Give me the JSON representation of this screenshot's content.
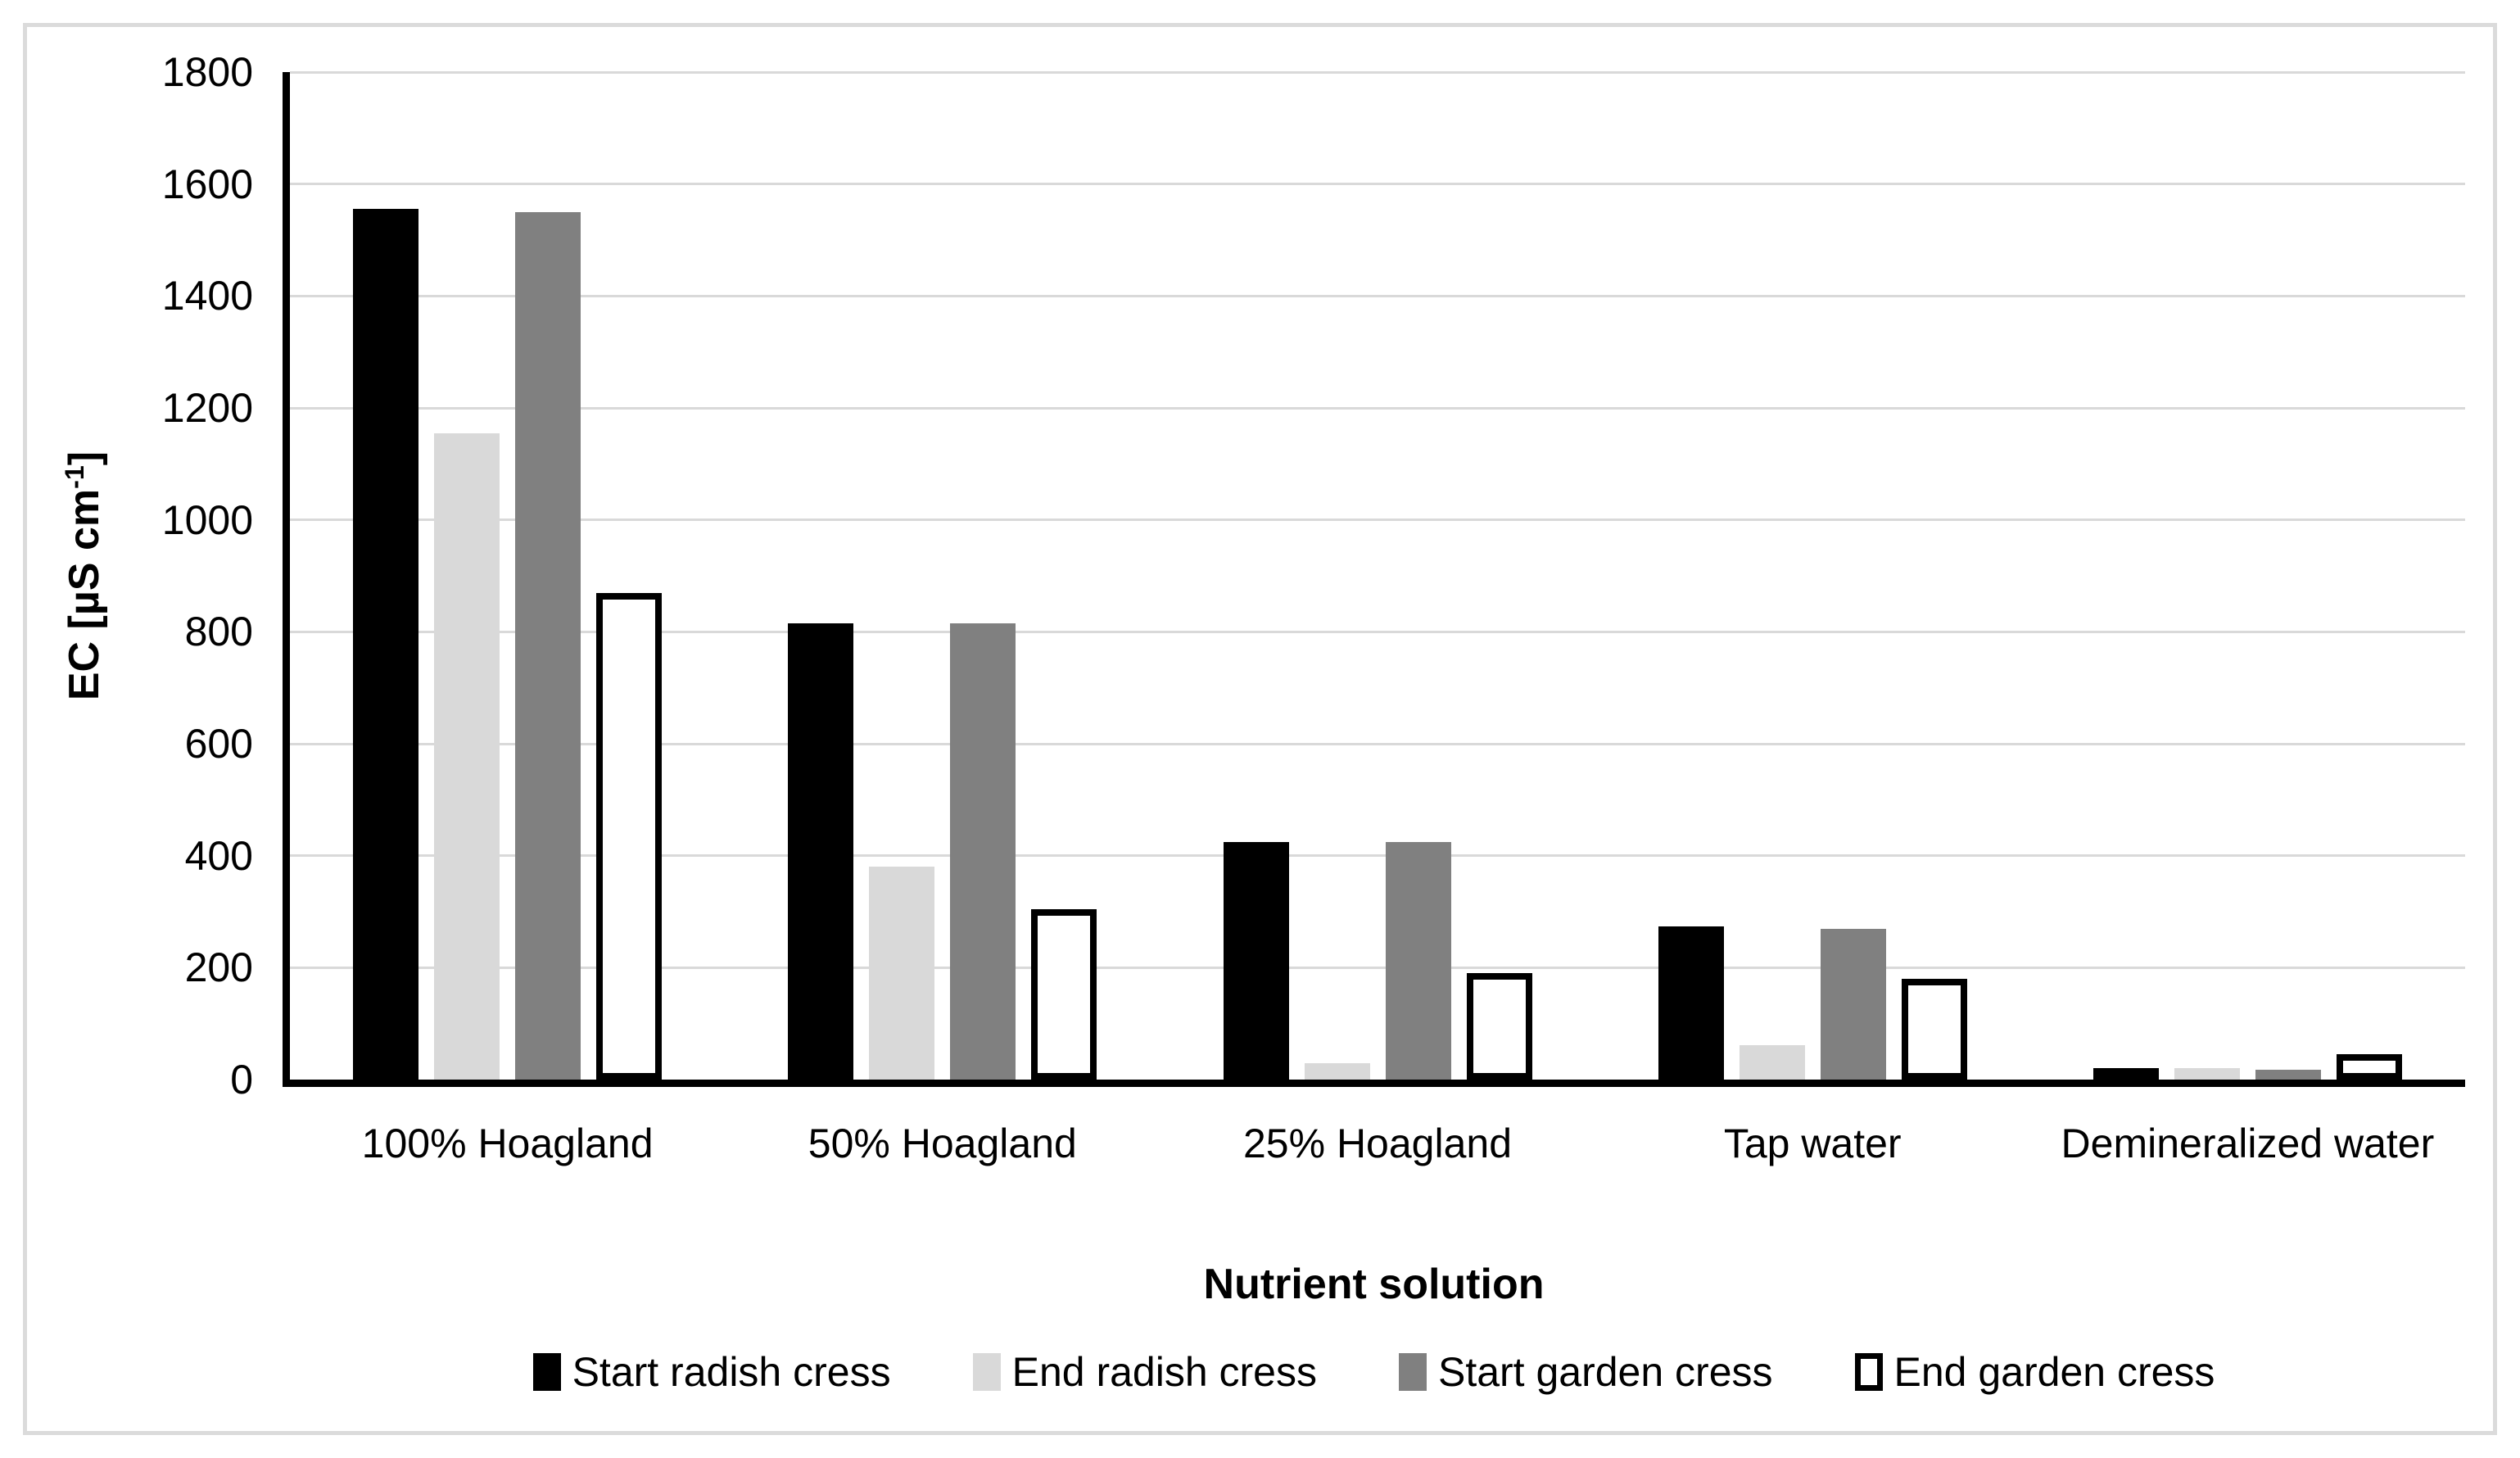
{
  "chart_data": {
    "type": "bar",
    "title": "",
    "xlabel": "Nutrient solution",
    "ylabel": "EC [µS cm-1]",
    "ylabel_parts": {
      "main": "EC [µS cm",
      "sup": "-1",
      "end": "]"
    },
    "ylim": [
      0,
      1800
    ],
    "ytick_step": 200,
    "yticks": [
      0,
      200,
      400,
      600,
      800,
      1000,
      1200,
      1400,
      1600,
      1800
    ],
    "grid": true,
    "legend_position": "bottom",
    "categories": [
      "100% Hoagland",
      "50% Hoagland",
      "25% Hoagland",
      "Tap water",
      "Demineralized water"
    ],
    "series": [
      {
        "name": "Start radish cress",
        "color": "#000000",
        "values": [
          1555,
          815,
          425,
          273,
          20
        ]
      },
      {
        "name": "End radish cress",
        "color": "#d9d9d9",
        "values": [
          1155,
          380,
          30,
          62,
          20
        ]
      },
      {
        "name": "Start garden cress",
        "color": "#808080",
        "values": [
          1550,
          815,
          425,
          270,
          18
        ]
      },
      {
        "name": "End garden cress",
        "color": "#ffffff",
        "border": "#000000",
        "values": [
          870,
          305,
          190,
          180,
          45
        ]
      }
    ]
  },
  "colors": {
    "background": "#ffffff",
    "frame": "#dbdbdb",
    "gridline": "#d9d9d9",
    "axis": "#000000"
  }
}
